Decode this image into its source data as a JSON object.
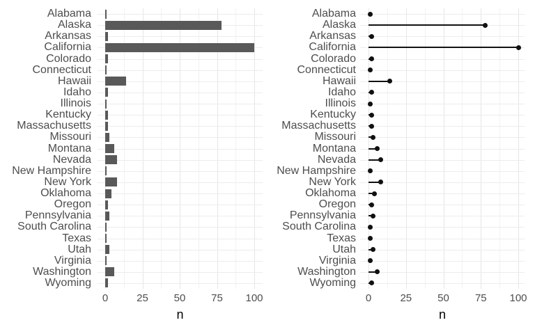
{
  "figure": {
    "background": "#FFFFFF",
    "title": "",
    "panels": 2
  },
  "colors": {
    "bar_fill": "#595959",
    "lollipop_point": "#111111",
    "lollipop_stick": "#111111",
    "axis_text": "#4D4D4D",
    "axis_title": "#000000",
    "grid_major": "#E6E6E6",
    "grid_minor": "#F2F2F2",
    "background": "#FFFFFF"
  },
  "chart_data": [
    {
      "type": "bar",
      "orientation": "horizontal",
      "title": "",
      "xlabel": "n",
      "ylabel": "",
      "categories": [
        "Alabama",
        "Alaska",
        "Arkansas",
        "California",
        "Colorado",
        "Connecticut",
        "Hawaii",
        "Idaho",
        "Illinois",
        "Kentucky",
        "Massachusetts",
        "Missouri",
        "Montana",
        "Nevada",
        "New Hampshire",
        "New York",
        "Oklahoma",
        "Oregon",
        "Pennsylvania",
        "South Carolina",
        "Texas",
        "Utah",
        "Virginia",
        "Washington",
        "Wyoming"
      ],
      "values": [
        1,
        78,
        2,
        100,
        2,
        1,
        14,
        2,
        1,
        2,
        2,
        3,
        6,
        8,
        1,
        8,
        4,
        2,
        3,
        1,
        1,
        3,
        1,
        6,
        2
      ],
      "xlim": [
        0,
        105
      ],
      "x_major_ticks": [
        0,
        25,
        50,
        75,
        100
      ],
      "x_minor_gridlines": [
        12.5,
        37.5,
        62.5,
        87.5
      ],
      "grid": "on",
      "legend": "none",
      "bar_color": "#595959"
    },
    {
      "type": "scatter",
      "style": "lollipop",
      "orientation": "horizontal",
      "title": "",
      "xlabel": "n",
      "ylabel": "",
      "categories": [
        "Alabama",
        "Alaska",
        "Arkansas",
        "California",
        "Colorado",
        "Connecticut",
        "Hawaii",
        "Idaho",
        "Illinois",
        "Kentucky",
        "Massachusetts",
        "Missouri",
        "Montana",
        "Nevada",
        "New Hampshire",
        "New York",
        "Oklahoma",
        "Oregon",
        "Pennsylvania",
        "South Carolina",
        "Texas",
        "Utah",
        "Virginia",
        "Washington",
        "Wyoming"
      ],
      "values": [
        1,
        78,
        2,
        100,
        2,
        1,
        14,
        2,
        1,
        2,
        2,
        3,
        6,
        8,
        1,
        8,
        4,
        2,
        3,
        1,
        1,
        3,
        1,
        6,
        2
      ],
      "xlim": [
        0,
        105
      ],
      "x_major_ticks": [
        0,
        25,
        50,
        75,
        100
      ],
      "x_minor_gridlines": [
        12.5,
        37.5,
        62.5,
        87.5
      ],
      "grid": "on",
      "legend": "none",
      "point_color": "#111111",
      "stick_color": "#111111"
    }
  ]
}
